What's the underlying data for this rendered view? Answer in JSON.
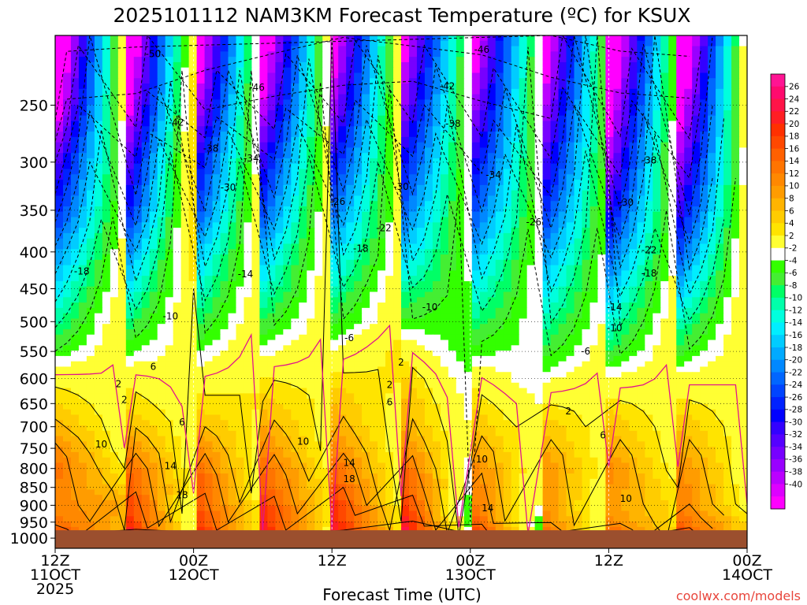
{
  "chart_data": {
    "type": "contour",
    "title": "2025101112 NAM3KM Forecast Temperature (ºC) for KSUX",
    "xlabel": "Forecast Time (UTC)",
    "ylabel": "",
    "credit": "coolwx.com/models",
    "y_axis": {
      "ticks": [
        250,
        300,
        350,
        400,
        450,
        500,
        550,
        600,
        650,
        700,
        750,
        800,
        850,
        900,
        950,
        1000
      ],
      "range": [
        1033,
        200
      ],
      "scale": "log-pressure",
      "units": "hPa"
    },
    "x_axis": {
      "range": [
        0,
        60
      ],
      "units": "forecast hours",
      "ticks": [
        {
          "h": 0,
          "line1": "12Z",
          "line2": "11OCT",
          "line3": "2025"
        },
        {
          "h": 12,
          "line1": "00Z",
          "line2": "12OCT",
          "line3": ""
        },
        {
          "h": 24,
          "line1": "12Z",
          "line2": "",
          "line3": ""
        },
        {
          "h": 36,
          "line1": "00Z",
          "line2": "13OCT",
          "line3": ""
        },
        {
          "h": 48,
          "line1": "12Z",
          "line2": "",
          "line3": ""
        },
        {
          "h": 60,
          "line1": "00Z",
          "line2": "14OCT",
          "line3": ""
        }
      ]
    },
    "colorbar": {
      "labels": [
        26,
        24,
        22,
        20,
        18,
        16,
        14,
        12,
        10,
        8,
        6,
        4,
        2,
        -2,
        -4,
        -6,
        -8,
        -10,
        -12,
        -14,
        -16,
        -18,
        -20,
        -22,
        -24,
        -26,
        -28,
        -30,
        -32,
        -34,
        -36,
        -38,
        -40
      ],
      "colors": [
        "#ff1493",
        "#ff0a6e",
        "#ff1448",
        "#ff1e24",
        "#ff3000",
        "#ff4800",
        "#ff6000",
        "#ff7400",
        "#ff8800",
        "#ff9c00",
        "#ffb400",
        "#ffcc00",
        "#ffe400",
        "#ffff33",
        "#ffffff",
        "#33ff00",
        "#44ee33",
        "#00ff66",
        "#00ffaa",
        "#00ffdd",
        "#00eeff",
        "#00ccff",
        "#00aaff",
        "#0088ff",
        "#0066ff",
        "#0044ff",
        "#0022ff",
        "#0000ff",
        "#3300ff",
        "#5500ff",
        "#7700ff",
        "#9900ff",
        "#bb00ff",
        "#dd00ff",
        "#ff00ff"
      ],
      "bottom_color": "#ff00ff"
    },
    "profile": {
      "levels": [
        1000,
        950,
        900,
        850,
        800,
        750,
        700,
        650,
        600,
        550,
        500,
        450,
        400,
        350,
        300,
        250,
        200
      ],
      "temps_by_hour": [
        {
          "h": 0,
          "t": [
            19,
            13,
            11,
            12,
            13,
            11,
            7,
            4,
            1,
            -6,
            -11,
            -16,
            -21,
            -28,
            -34,
            -45,
            -52
          ]
        },
        {
          "h": 6,
          "t": [
            24,
            20,
            19,
            16,
            15,
            11,
            7,
            4,
            1,
            -5,
            -10,
            -16,
            -22,
            -30,
            -36,
            -45,
            -52
          ]
        },
        {
          "h": 12,
          "t": [
            23,
            19,
            17,
            17,
            15,
            11,
            7,
            3,
            0,
            -5,
            -9,
            -14,
            -19,
            -27,
            -32,
            -42,
            -50
          ]
        },
        {
          "h": 18,
          "t": [
            22,
            20,
            18,
            15,
            14,
            11,
            8,
            5,
            2,
            -3,
            -8,
            -13,
            -18,
            -25,
            -31,
            -40,
            -48
          ]
        },
        {
          "h": 24,
          "t": [
            21,
            21,
            19,
            17,
            15,
            11,
            8,
            6,
            3,
            -2,
            -7,
            -12,
            -17,
            -24,
            -30,
            -39,
            -46
          ]
        },
        {
          "h": 30,
          "t": [
            25,
            23,
            20,
            16,
            15,
            11,
            8,
            7,
            5,
            1,
            -6,
            -11,
            -18,
            -24,
            -30,
            -38,
            -45
          ]
        },
        {
          "h": 36,
          "t": [
            23,
            17,
            13,
            13,
            12,
            9,
            6,
            4,
            1,
            -5,
            -10,
            -15,
            -20,
            -26,
            -32,
            -40,
            -47
          ]
        },
        {
          "h": 42,
          "t": [
            19,
            12,
            11,
            11,
            11,
            8,
            6,
            2,
            -3,
            -8,
            -12,
            -17,
            -22,
            -29,
            -35,
            -42,
            -50
          ]
        },
        {
          "h": 48,
          "t": [
            16,
            11,
            9,
            10,
            11,
            8,
            6,
            3,
            -2,
            -8,
            -13,
            -18,
            -24,
            -31,
            -38,
            -44,
            -52
          ]
        },
        {
          "h": 54,
          "t": [
            20,
            14,
            12,
            12,
            11,
            8,
            6,
            3,
            -1,
            -7,
            -12,
            -18,
            -25,
            -32,
            -38,
            -45,
            -53
          ]
        },
        {
          "h": 60,
          "t": [
            23,
            18,
            12,
            12,
            11,
            8,
            6,
            3,
            -1,
            -6,
            -11,
            -17,
            -24,
            -32,
            -38,
            -44,
            -52
          ]
        }
      ]
    },
    "contour_labels": [
      {
        "h": 8.5,
        "p": 212,
        "text": "-50"
      },
      {
        "h": 17.5,
        "p": 236,
        "text": "-46"
      },
      {
        "h": 37,
        "p": 209,
        "text": "-46"
      },
      {
        "h": 34,
        "p": 235,
        "text": "-42"
      },
      {
        "h": 10.5,
        "p": 264,
        "text": "-42"
      },
      {
        "h": 34.5,
        "p": 265,
        "text": "-38"
      },
      {
        "h": 13.5,
        "p": 287,
        "text": "-38"
      },
      {
        "h": 51.5,
        "p": 298,
        "text": "-38"
      },
      {
        "h": 17,
        "p": 296,
        "text": "-34"
      },
      {
        "h": 38,
        "p": 312,
        "text": "-34"
      },
      {
        "h": 15,
        "p": 325,
        "text": "-30"
      },
      {
        "h": 30,
        "p": 324,
        "text": "-30"
      },
      {
        "h": 49.5,
        "p": 341,
        "text": "-30"
      },
      {
        "h": 24.5,
        "p": 340,
        "text": "-26"
      },
      {
        "h": 41.5,
        "p": 363,
        "text": "-26"
      },
      {
        "h": 28.5,
        "p": 370,
        "text": "-22"
      },
      {
        "h": 51.5,
        "p": 397,
        "text": "-22"
      },
      {
        "h": 26.5,
        "p": 395,
        "text": "-18"
      },
      {
        "h": 2.3,
        "p": 425,
        "text": "-18"
      },
      {
        "h": 51.5,
        "p": 428,
        "text": "-18"
      },
      {
        "h": 16.5,
        "p": 429,
        "text": "-14"
      },
      {
        "h": 48.5,
        "p": 477,
        "text": "-14"
      },
      {
        "h": 10,
        "p": 491,
        "text": "-10"
      },
      {
        "h": 32.5,
        "p": 477,
        "text": "-10"
      },
      {
        "h": 48.5,
        "p": 510,
        "text": "-10"
      },
      {
        "h": 25.5,
        "p": 526,
        "text": "-6"
      },
      {
        "h": 46,
        "p": 549,
        "text": "-6"
      },
      {
        "h": 8.5,
        "p": 577,
        "text": "6"
      },
      {
        "h": 30,
        "p": 569,
        "text": "2"
      },
      {
        "h": 5.5,
        "p": 610,
        "text": "2"
      },
      {
        "h": 6,
        "p": 641,
        "text": "2"
      },
      {
        "h": 29,
        "p": 611,
        "text": "2"
      },
      {
        "h": 44.5,
        "p": 665,
        "text": "2"
      },
      {
        "h": 29,
        "p": 646,
        "text": "6"
      },
      {
        "h": 11,
        "p": 689,
        "text": "6"
      },
      {
        "h": 47.5,
        "p": 718,
        "text": "6"
      },
      {
        "h": 4,
        "p": 740,
        "text": "10"
      },
      {
        "h": 21.5,
        "p": 733,
        "text": "10"
      },
      {
        "h": 37,
        "p": 776,
        "text": "10"
      },
      {
        "h": 49.5,
        "p": 880,
        "text": "10"
      },
      {
        "h": 10,
        "p": 793,
        "text": "14"
      },
      {
        "h": 25.5,
        "p": 785,
        "text": "14"
      },
      {
        "h": 37.5,
        "p": 907,
        "text": "14"
      },
      {
        "h": 11,
        "p": 870,
        "text": "18"
      },
      {
        "h": 25.5,
        "p": 826,
        "text": "18"
      }
    ]
  }
}
